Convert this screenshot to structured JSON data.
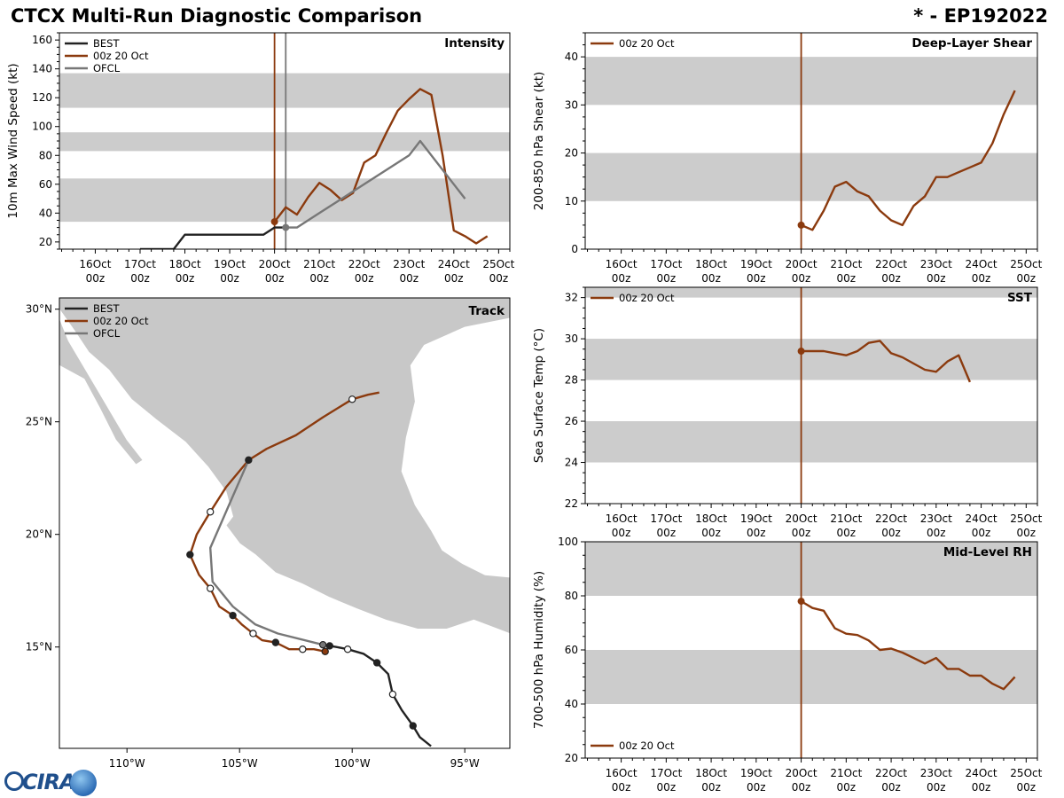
{
  "header": {
    "title": "CTCX Multi-Run Diagnostic Comparison",
    "storm_id": "* - EP192022"
  },
  "colors": {
    "best": "#222222",
    "run": "#8b3a0e",
    "ofcl": "#777777",
    "band": "#cccccc",
    "land": "#c8c8c8"
  },
  "time_ticks": [
    {
      "l1": "16Oct",
      "l2": "00z",
      "day": -4
    },
    {
      "l1": "17Oct",
      "l2": "00z",
      "day": -3
    },
    {
      "l1": "18Oct",
      "l2": "00z",
      "day": -2
    },
    {
      "l1": "19Oct",
      "l2": "00z",
      "day": -1
    },
    {
      "l1": "20Oct",
      "l2": "00z",
      "day": 0
    },
    {
      "l1": "21Oct",
      "l2": "00z",
      "day": 1
    },
    {
      "l1": "22Oct",
      "l2": "00z",
      "day": 2
    },
    {
      "l1": "23Oct",
      "l2": "00z",
      "day": 3
    },
    {
      "l1": "24Oct",
      "l2": "00z",
      "day": 4
    },
    {
      "l1": "25Oct",
      "l2": "00z",
      "day": 5
    }
  ],
  "chart_data": [
    {
      "id": "intensity",
      "type": "line",
      "title": "Intensity",
      "ylabel": "10m Max Wind Speed (kt)",
      "xlim": [
        -4.8,
        5.25
      ],
      "ylim": [
        15,
        165
      ],
      "yticks": [
        20,
        40,
        60,
        80,
        100,
        120,
        140,
        160
      ],
      "bands": [
        [
          34,
          64
        ],
        [
          83,
          96
        ],
        [
          113,
          137
        ]
      ],
      "vlines": [
        {
          "series": "run",
          "x": 0
        },
        {
          "series": "ofcl",
          "x": 0.25
        }
      ],
      "legend": [
        {
          "series": "best",
          "label": "BEST"
        },
        {
          "series": "run",
          "label": "00z 20 Oct"
        },
        {
          "series": "ofcl",
          "label": "OFCL"
        }
      ],
      "series": [
        {
          "key": "best",
          "name": "BEST",
          "x": [
            -3,
            -2.25,
            -2,
            -1.5,
            -1,
            -0.5,
            -0.25,
            0,
            0.25
          ],
          "y": [
            15,
            15,
            25,
            25,
            25,
            25,
            25,
            30,
            30
          ]
        },
        {
          "key": "run",
          "name": "00z 20 Oct",
          "marker": 0,
          "x": [
            0,
            0.25,
            0.5,
            0.75,
            1,
            1.25,
            1.5,
            1.75,
            2,
            2.25,
            2.5,
            2.75,
            3,
            3.25,
            3.5,
            3.75,
            4,
            4.25,
            4.5,
            4.75
          ],
          "y": [
            34,
            44,
            39,
            51,
            61,
            56,
            49,
            54,
            75,
            80,
            96,
            111,
            119,
            126,
            122,
            80,
            28,
            24,
            19,
            24
          ]
        },
        {
          "key": "ofcl",
          "name": "OFCL",
          "marker": 0,
          "x": [
            0.25,
            0.5,
            1,
            1.5,
            2,
            2.5,
            3,
            3.25,
            4,
            4.25
          ],
          "y": [
            30,
            30,
            40,
            50,
            60,
            70,
            80,
            90,
            60,
            50
          ]
        }
      ]
    },
    {
      "id": "shear",
      "type": "line",
      "title": "Deep-Layer Shear",
      "ylabel": "200-850 hPa Shear (kt)",
      "xlim": [
        -4.8,
        5.25
      ],
      "ylim": [
        0,
        45
      ],
      "yticks": [
        0,
        10,
        20,
        30,
        40
      ],
      "bands": [
        [
          10,
          20
        ],
        [
          30,
          40
        ]
      ],
      "vlines": [
        {
          "series": "run",
          "x": 0
        }
      ],
      "legend": [
        {
          "series": "run",
          "label": "00z 20 Oct"
        }
      ],
      "series": [
        {
          "key": "run",
          "name": "00z 20 Oct",
          "marker": 0,
          "x": [
            0,
            0.25,
            0.5,
            0.75,
            1,
            1.25,
            1.5,
            1.75,
            2,
            2.25,
            2.5,
            2.75,
            3,
            3.25,
            3.5,
            3.75,
            4,
            4.25,
            4.5,
            4.75
          ],
          "y": [
            5,
            4,
            8,
            13,
            14,
            12,
            11,
            8,
            6,
            5,
            9,
            11,
            15,
            15,
            16,
            17,
            18,
            22,
            28,
            33
          ]
        }
      ]
    },
    {
      "id": "sst",
      "type": "line",
      "title": "SST",
      "ylabel": "Sea Surface Temp (°C)",
      "xlim": [
        -4.8,
        5.25
      ],
      "ylim": [
        22,
        32.5
      ],
      "yticks": [
        22,
        24,
        26,
        28,
        30,
        32
      ],
      "bands": [
        [
          24,
          26
        ],
        [
          28,
          30
        ],
        [
          32,
          34
        ]
      ],
      "vlines": [
        {
          "series": "run",
          "x": 0
        }
      ],
      "legend": [
        {
          "series": "run",
          "label": "00z 20 Oct"
        }
      ],
      "series": [
        {
          "key": "run",
          "name": "00z 20 Oct",
          "marker": 0,
          "x": [
            0,
            0.25,
            0.5,
            0.75,
            1,
            1.25,
            1.5,
            1.75,
            2,
            2.25,
            2.5,
            2.75,
            3,
            3.25,
            3.5,
            3.75
          ],
          "y": [
            29.4,
            29.4,
            29.4,
            29.3,
            29.2,
            29.4,
            29.8,
            29.9,
            29.3,
            29.1,
            28.8,
            28.5,
            28.4,
            28.9,
            29.2,
            27.9
          ]
        }
      ]
    },
    {
      "id": "rh",
      "type": "line",
      "title": "Mid-Level RH",
      "ylabel": "700-500 hPa Humidity (%)",
      "xlim": [
        -4.8,
        5.25
      ],
      "ylim": [
        20,
        100
      ],
      "yticks": [
        20,
        40,
        60,
        80,
        100
      ],
      "bands": [
        [
          40,
          60
        ],
        [
          80,
          100
        ]
      ],
      "vlines": [
        {
          "series": "run",
          "x": 0
        }
      ],
      "legend": [
        {
          "series": "run",
          "label": "00z 20 Oct"
        }
      ],
      "series": [
        {
          "key": "run",
          "name": "00z 20 Oct",
          "marker": 0,
          "x": [
            0,
            0.25,
            0.5,
            0.75,
            1,
            1.25,
            1.5,
            1.75,
            2,
            2.25,
            2.5,
            2.75,
            3,
            3.25,
            3.5,
            3.75,
            4,
            4.25,
            4.5,
            4.75
          ],
          "y": [
            78,
            75.5,
            74.5,
            68,
            66,
            65.5,
            63.5,
            60,
            60.5,
            59,
            57,
            55,
            57,
            53,
            53,
            50.5,
            50.5,
            47.5,
            45.5,
            50
          ]
        }
      ]
    },
    {
      "id": "track",
      "type": "scatter",
      "title": "Track",
      "lonlim": [
        -113,
        -93
      ],
      "latlim": [
        10.5,
        30.5
      ],
      "lon_ticks": [
        {
          "v": -110,
          "label": "110°W"
        },
        {
          "v": -105,
          "label": "105°W"
        },
        {
          "v": -100,
          "label": "100°W"
        },
        {
          "v": -95,
          "label": "95°W"
        }
      ],
      "lat_ticks": [
        {
          "v": 15,
          "label": "15°N"
        },
        {
          "v": 20,
          "label": "20°N"
        },
        {
          "v": 25,
          "label": "25°N"
        },
        {
          "v": 30,
          "label": "30°N"
        }
      ],
      "legend": [
        {
          "series": "best",
          "label": "BEST"
        },
        {
          "series": "run",
          "label": "00z 20 Oct"
        },
        {
          "series": "ofcl",
          "label": "OFCL"
        }
      ],
      "series": [
        {
          "key": "best",
          "name": "BEST",
          "lon": [
            -96.5,
            -97.0,
            -97.3,
            -97.8,
            -98.2,
            -98.4,
            -98.9,
            -99.5,
            -100.2,
            -100.7,
            -101.0,
            -101.3
          ],
          "lat": [
            10.6,
            11.0,
            11.5,
            12.2,
            12.9,
            13.8,
            14.3,
            14.7,
            14.9,
            15.0,
            15.05,
            15.1
          ],
          "markers": [
            {
              "i": 2,
              "fill": "dark"
            },
            {
              "i": 4,
              "fill": "open"
            },
            {
              "i": 6,
              "fill": "dark"
            },
            {
              "i": 8,
              "fill": "open"
            },
            {
              "i": 10,
              "fill": "dark"
            }
          ]
        },
        {
          "key": "run",
          "name": "00z 20 Oct",
          "lon": [
            -101.2,
            -101.7,
            -102.2,
            -102.8,
            -103.4,
            -104.0,
            -104.4,
            -104.9,
            -105.3,
            -105.9,
            -106.3,
            -106.8,
            -107.2,
            -106.9,
            -106.3,
            -105.6,
            -104.6,
            -103.8,
            -102.5,
            -101.3,
            -100.0,
            -99.3,
            -98.8
          ],
          "lat": [
            14.8,
            14.9,
            14.9,
            14.9,
            15.2,
            15.3,
            15.6,
            16.0,
            16.4,
            16.8,
            17.6,
            18.2,
            19.1,
            20.0,
            21.0,
            22.1,
            23.3,
            23.8,
            24.4,
            25.2,
            26.0,
            26.2,
            26.3
          ],
          "markers": [
            {
              "i": 0,
              "fill": "run"
            },
            {
              "i": 2,
              "fill": "open"
            },
            {
              "i": 4,
              "fill": "dark"
            },
            {
              "i": 6,
              "fill": "open"
            },
            {
              "i": 8,
              "fill": "dark"
            },
            {
              "i": 10,
              "fill": "open"
            },
            {
              "i": 12,
              "fill": "dark"
            },
            {
              "i": 14,
              "fill": "open"
            },
            {
              "i": 16,
              "fill": "dark"
            },
            {
              "i": 20,
              "fill": "open"
            }
          ]
        },
        {
          "key": "ofcl",
          "name": "OFCL",
          "lon": [
            -101.3,
            -103.3,
            -104.3,
            -105.3,
            -106.2,
            -106.3,
            -104.6
          ],
          "lat": [
            15.1,
            15.6,
            16.0,
            16.8,
            17.9,
            19.4,
            23.3
          ],
          "markers": [
            {
              "i": 0,
              "fill": "ofcl"
            }
          ]
        }
      ]
    }
  ]
}
